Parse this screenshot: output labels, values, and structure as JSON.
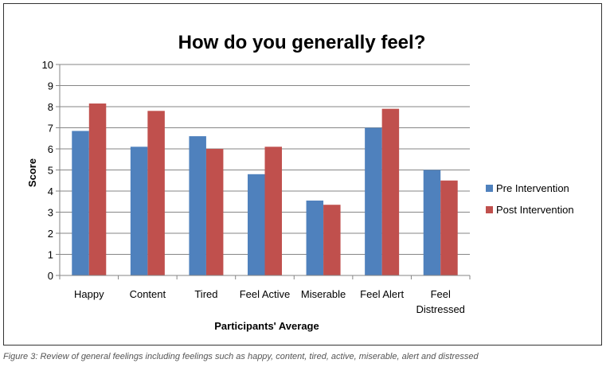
{
  "chart_data": {
    "type": "bar",
    "title": "How do you generally feel?",
    "xlabel": "Participants' Average",
    "ylabel": "Score",
    "ylim": [
      0,
      10
    ],
    "yticks": [
      0,
      1,
      2,
      3,
      4,
      5,
      6,
      7,
      8,
      9,
      10
    ],
    "grid": true,
    "legend_position": "right",
    "categories": [
      [
        "Happy"
      ],
      [
        "Content"
      ],
      [
        "Tired"
      ],
      [
        "Feel Active"
      ],
      [
        "Miserable"
      ],
      [
        "Feel Alert"
      ],
      [
        "Feel",
        "Distressed"
      ]
    ],
    "series": [
      {
        "name": "Pre Intervention",
        "color": "#4f81bd",
        "values": [
          6.85,
          6.1,
          6.6,
          4.8,
          3.55,
          7.0,
          5.0
        ]
      },
      {
        "name": "Post Intervention",
        "color": "#c0504d",
        "values": [
          8.15,
          7.8,
          6.0,
          6.1,
          3.35,
          7.9,
          4.5
        ]
      }
    ]
  },
  "caption": "Figure 3: Review of general feelings including feelings such as happy, content, tired, active, miserable, alert and distressed"
}
